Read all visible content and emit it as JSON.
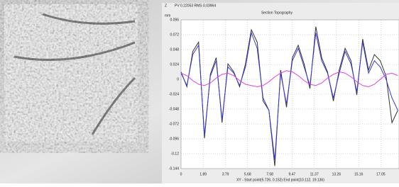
{
  "chart_data": {
    "type": "line",
    "title": "Section Topography",
    "subtitle": "PV 0.22053 RMS 0.03964",
    "corner_label": "Z",
    "y_label": "mm",
    "x_label": "XY - Start point(5.726, 0.152) End point(10.112, 19.136)",
    "x": [
      0,
      0.5,
      1,
      1.5,
      2,
      2.5,
      3,
      3.5,
      4,
      4.5,
      5,
      5.5,
      6,
      6.5,
      7,
      7.5,
      8,
      8.5,
      9,
      9.5,
      10,
      10.5,
      11,
      11.5,
      12,
      12.5,
      13,
      13.5,
      14,
      14.5,
      15,
      15.5,
      16,
      16.5,
      17,
      17.5,
      18,
      18.5
    ],
    "series": [
      {
        "color": "#333333",
        "values": [
          0.012,
          -0.012,
          0.045,
          0.06,
          -0.095,
          0.008,
          0.035,
          -0.07,
          0.025,
          0.012,
          -0.012,
          0.025,
          0.08,
          0.06,
          -0.035,
          -0.05,
          -0.14,
          0.015,
          -0.045,
          0.035,
          0.055,
          0.025,
          -0.015,
          0.085,
          0.035,
          0.012,
          -0.035,
          0.015,
          0.05,
          0.03,
          -0.025,
          0.065,
          0.015,
          0.04,
          0.03,
          0.005,
          -0.07,
          -0.05
        ]
      },
      {
        "color": "#3a3ad6",
        "values": [
          0.01,
          -0.01,
          0.04,
          0.055,
          -0.09,
          0.005,
          0.03,
          -0.065,
          0.02,
          0.01,
          -0.01,
          0.02,
          0.075,
          0.05,
          -0.03,
          -0.05,
          -0.13,
          0.01,
          -0.04,
          0.03,
          0.05,
          0.02,
          -0.01,
          0.075,
          0.03,
          0.01,
          -0.03,
          0.01,
          0.045,
          0.025,
          -0.02,
          0.06,
          0.01,
          0.03,
          0.02,
          0,
          -0.03,
          -0.05
        ]
      },
      {
        "color": "#e040e0",
        "values": [
          0.01,
          0.006,
          -0.002,
          -0.008,
          -0.01,
          -0.006,
          0.002,
          0.008,
          0.01,
          0.006,
          -0.002,
          -0.008,
          -0.01,
          -0.012,
          -0.01,
          -0.004,
          0.004,
          0.01,
          0.014,
          0.012,
          0.006,
          -0.002,
          -0.008,
          -0.01,
          -0.006,
          0.002,
          0.008,
          0.012,
          0.01,
          0.004,
          -0.004,
          -0.01,
          -0.012,
          -0.008,
          0,
          0.008,
          0.01,
          0.006
        ]
      }
    ],
    "xlim": [
      0,
      18.6
    ],
    "ylim": [
      -0.144,
      0.096
    ],
    "xticks": [
      0,
      1.89,
      3.79,
      5.68,
      7.58,
      9.47,
      11.37,
      13.26,
      15.16,
      17.05
    ],
    "yticks": [
      0.096,
      0.072,
      0.048,
      0.024,
      0,
      -0.024,
      -0.048,
      -0.072,
      -0.096,
      -0.12,
      -0.144
    ],
    "grid": true
  }
}
